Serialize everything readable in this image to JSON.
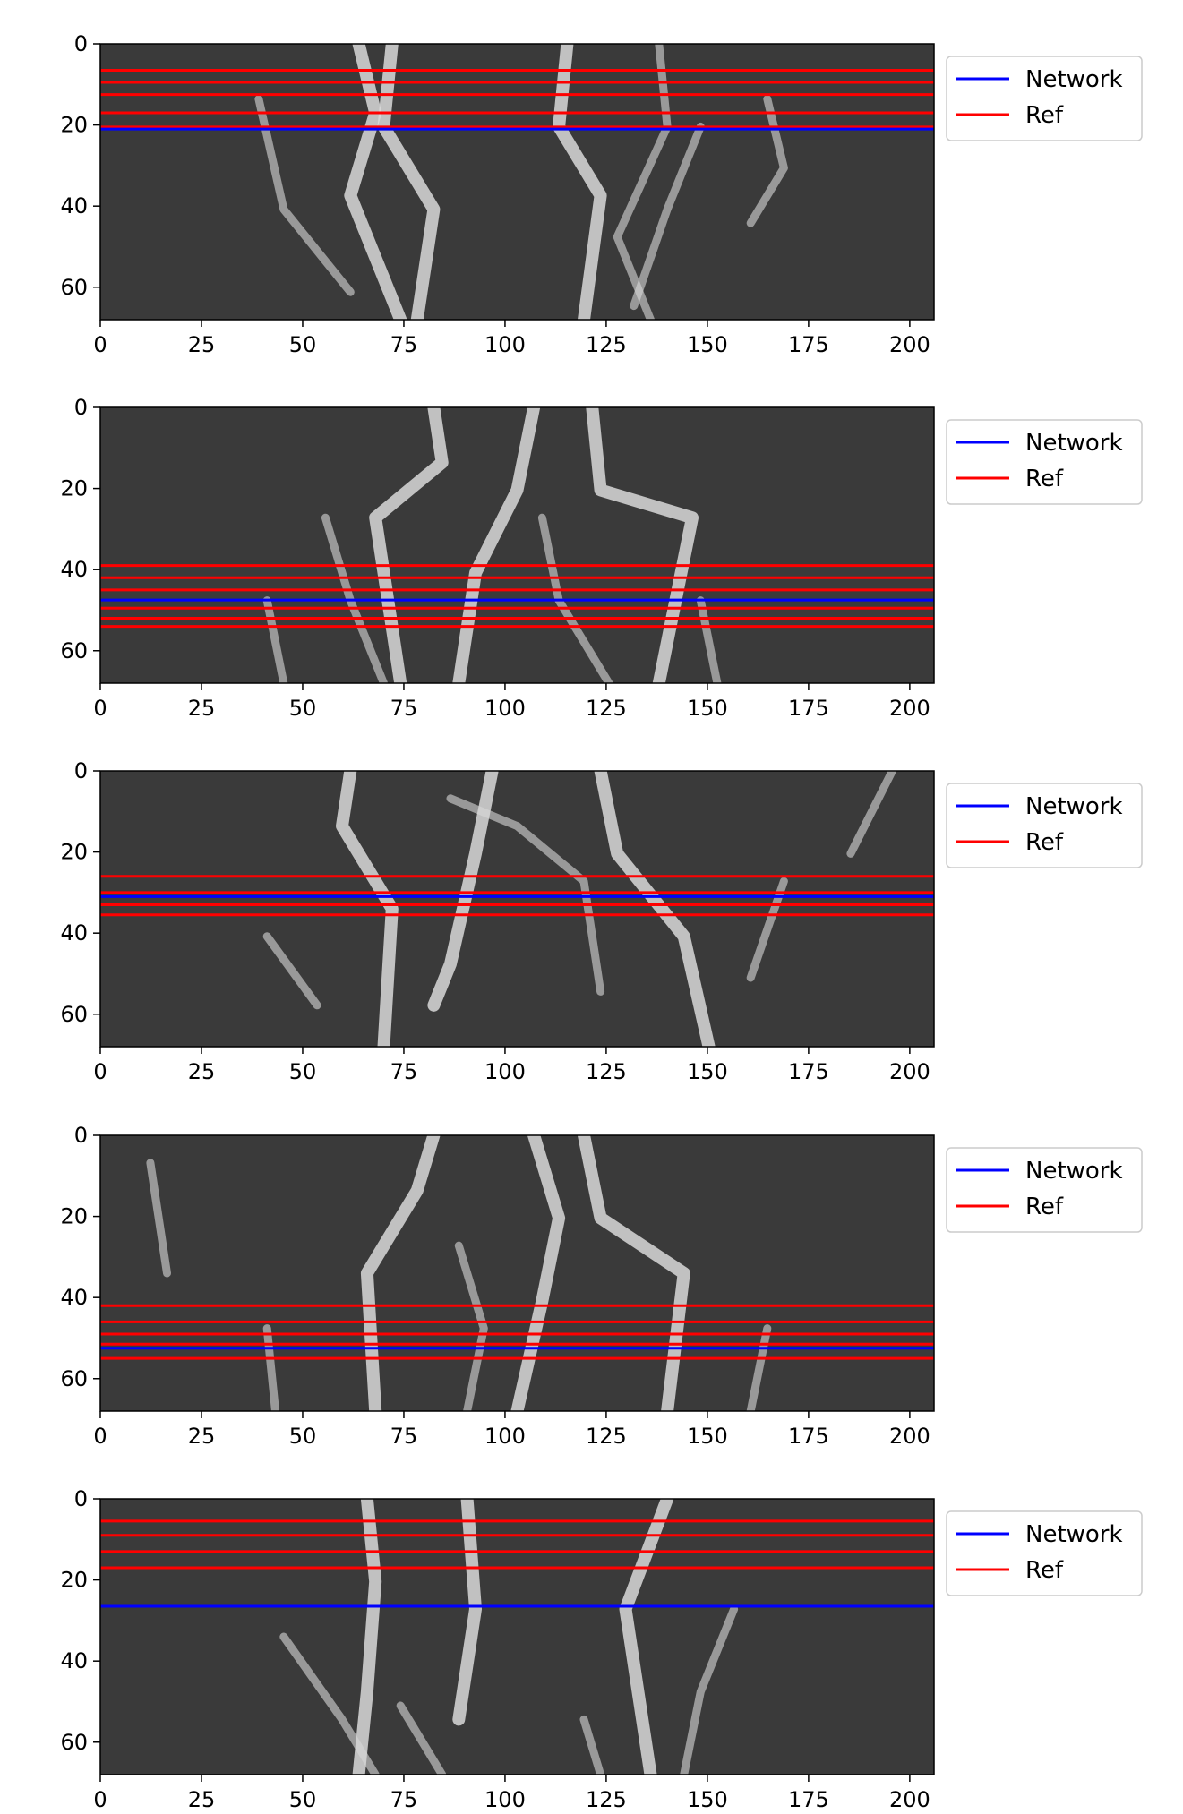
{
  "colors": {
    "network": "#0000ff",
    "ref": "#ff0000",
    "axis": "#000000",
    "legend_border": "#cccccc",
    "image_background": "#3a3a3a",
    "vessel": "#d9d9d9"
  },
  "chart_data": [
    {
      "type": "line",
      "panel": 1,
      "background": "grayscale MRA image (brain vessels)",
      "xlim": [
        0,
        206
      ],
      "ylim": [
        68,
        0
      ],
      "xticks": [
        0,
        25,
        50,
        75,
        100,
        125,
        150,
        175,
        200
      ],
      "yticks": [
        0,
        20,
        40,
        60
      ],
      "series": [
        {
          "name": "Network",
          "color": "#0000ff",
          "y": [
            21
          ]
        },
        {
          "name": "Ref",
          "color": "#ff0000",
          "y": [
            6.5,
            9.5,
            12.5,
            17,
            20.5
          ]
        }
      ],
      "legend": {
        "entries": [
          "Network",
          "Ref"
        ],
        "placement": "outside-right-top"
      }
    },
    {
      "type": "line",
      "panel": 2,
      "background": "grayscale MRA image (brain vessels)",
      "xlim": [
        0,
        206
      ],
      "ylim": [
        68,
        0
      ],
      "xticks": [
        0,
        25,
        50,
        75,
        100,
        125,
        150,
        175,
        200
      ],
      "yticks": [
        0,
        20,
        40,
        60
      ],
      "series": [
        {
          "name": "Network",
          "color": "#0000ff",
          "y": [
            47.5
          ]
        },
        {
          "name": "Ref",
          "color": "#ff0000",
          "y": [
            39,
            42,
            45,
            49.5,
            52,
            54
          ]
        }
      ],
      "legend": {
        "entries": [
          "Network",
          "Ref"
        ],
        "placement": "outside-right-top"
      }
    },
    {
      "type": "line",
      "panel": 3,
      "background": "grayscale MRA image (brain vessels)",
      "xlim": [
        0,
        206
      ],
      "ylim": [
        68,
        0
      ],
      "xticks": [
        0,
        25,
        50,
        75,
        100,
        125,
        150,
        175,
        200
      ],
      "yticks": [
        0,
        20,
        40,
        60
      ],
      "series": [
        {
          "name": "Network",
          "color": "#0000ff",
          "y": [
            31
          ]
        },
        {
          "name": "Ref",
          "color": "#ff0000",
          "y": [
            26,
            30,
            33,
            35.5
          ]
        }
      ],
      "legend": {
        "entries": [
          "Network",
          "Ref"
        ],
        "placement": "outside-right-top"
      }
    },
    {
      "type": "line",
      "panel": 4,
      "background": "grayscale MRA image (brain vessels)",
      "xlim": [
        0,
        206
      ],
      "ylim": [
        68,
        0
      ],
      "xticks": [
        0,
        25,
        50,
        75,
        100,
        125,
        150,
        175,
        200
      ],
      "yticks": [
        0,
        20,
        40,
        60
      ],
      "series": [
        {
          "name": "Network",
          "color": "#0000ff",
          "y": [
            52.5
          ]
        },
        {
          "name": "Ref",
          "color": "#ff0000",
          "y": [
            42,
            46,
            49,
            51.5,
            55
          ]
        }
      ],
      "legend": {
        "entries": [
          "Network",
          "Ref"
        ],
        "placement": "outside-right-top"
      }
    },
    {
      "type": "line",
      "panel": 5,
      "background": "grayscale MRA image (brain vessels)",
      "xlim": [
        0,
        206
      ],
      "ylim": [
        68,
        0
      ],
      "xticks": [
        0,
        25,
        50,
        75,
        100,
        125,
        150,
        175,
        200
      ],
      "yticks": [
        0,
        20,
        40,
        60
      ],
      "series": [
        {
          "name": "Network",
          "color": "#0000ff",
          "y": [
            26.5
          ]
        },
        {
          "name": "Ref",
          "color": "#ff0000",
          "y": [
            5.5,
            9,
            13,
            17
          ]
        }
      ],
      "legend": {
        "entries": [
          "Network",
          "Ref"
        ],
        "placement": "outside-right-top"
      }
    }
  ]
}
